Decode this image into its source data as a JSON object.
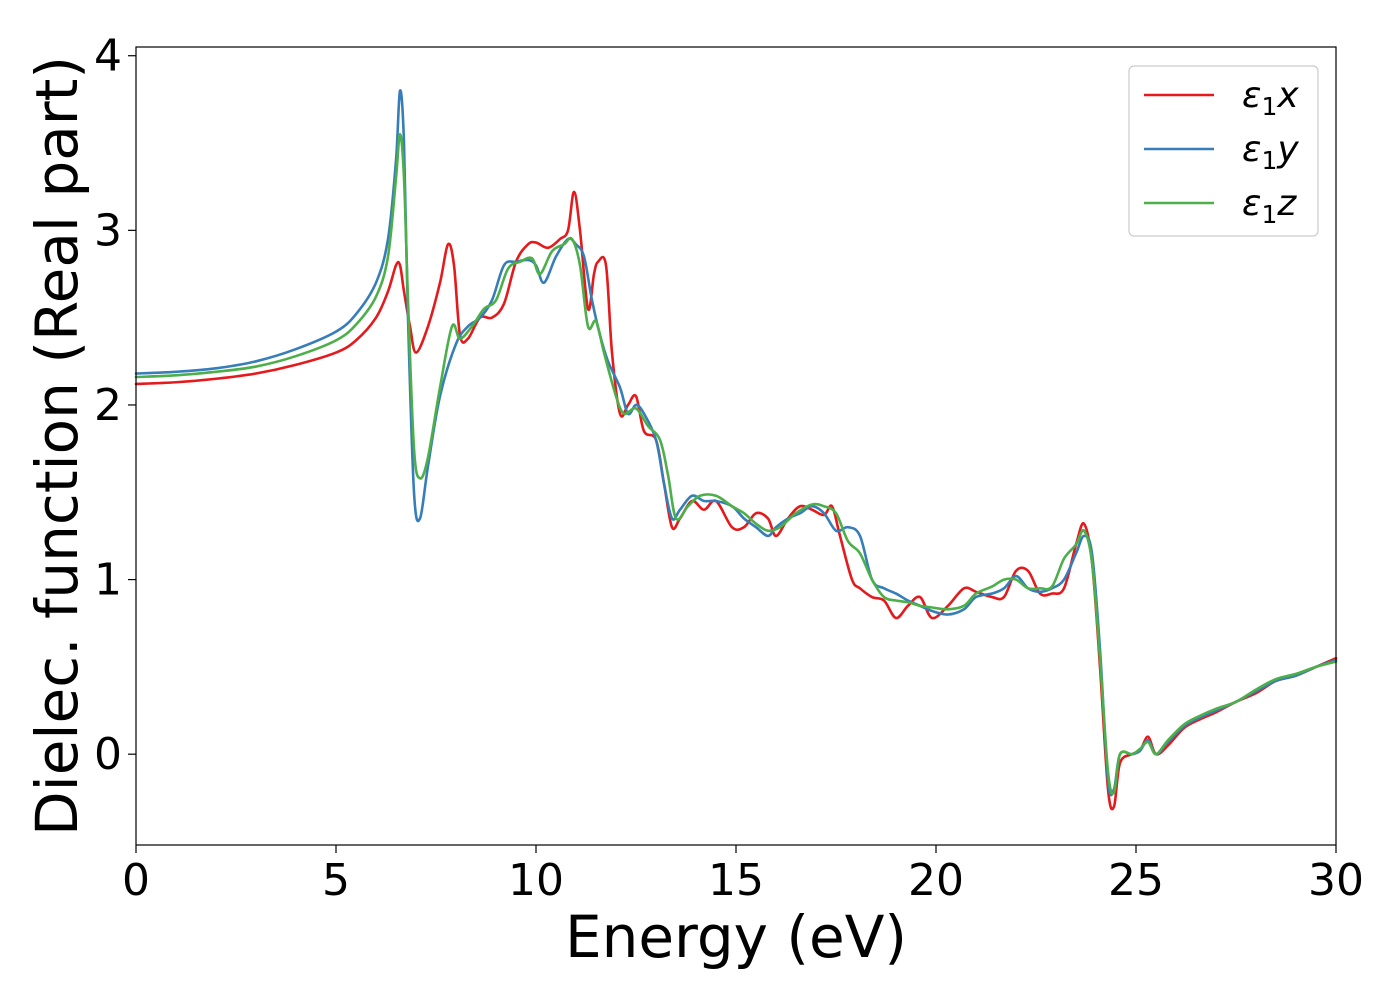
{
  "chart_data": {
    "type": "line",
    "xlabel": "Energy (eV)",
    "ylabel": "Dielec. function (Real part)",
    "xlim": [
      0,
      30
    ],
    "ylim": [
      -0.52,
      4.05
    ],
    "xticks": [
      0,
      5,
      10,
      15,
      20,
      25,
      30
    ],
    "xtick_labels": [
      "0",
      "5",
      "10",
      "15",
      "20",
      "25",
      "30"
    ],
    "yticks": [
      0,
      1,
      2,
      3,
      4
    ],
    "ytick_labels": [
      "0",
      "1",
      "2",
      "3",
      "4"
    ],
    "grid": false,
    "legend_position": "top-right",
    "series": [
      {
        "name": "ε1x",
        "legend": {
          "symbol": "ε",
          "sub": "1",
          "var": "x"
        },
        "color": "#e41a1c",
        "x": [
          0,
          1,
          2,
          3,
          4,
          5,
          5.5,
          6,
          6.3,
          6.5,
          6.6,
          6.7,
          6.85,
          7.0,
          7.3,
          7.6,
          7.8,
          7.95,
          8.1,
          8.3,
          8.6,
          8.9,
          9.2,
          9.5,
          9.8,
          10.0,
          10.3,
          10.6,
          10.8,
          10.95,
          11.1,
          11.3,
          11.45,
          11.55,
          11.75,
          11.9,
          12.1,
          12.3,
          12.5,
          12.7,
          13.0,
          13.2,
          13.4,
          13.6,
          13.9,
          14.2,
          14.5,
          14.9,
          15.2,
          15.5,
          15.8,
          16.0,
          16.3,
          16.6,
          16.9,
          17.2,
          17.4,
          17.6,
          17.9,
          18.1,
          18.4,
          18.7,
          19.0,
          19.3,
          19.6,
          19.9,
          20.3,
          20.7,
          21.0,
          21.4,
          21.7,
          22.0,
          22.3,
          22.6,
          22.9,
          23.2,
          23.5,
          23.7,
          23.9,
          24.1,
          24.3,
          24.45,
          24.6,
          24.9,
          25.1,
          25.3,
          25.5,
          25.8,
          26.2,
          26.6,
          27.0,
          27.5,
          28.0,
          28.5,
          29.0,
          29.5,
          30.0
        ],
        "y": [
          2.12,
          2.13,
          2.15,
          2.18,
          2.23,
          2.3,
          2.37,
          2.5,
          2.65,
          2.8,
          2.8,
          2.65,
          2.45,
          2.3,
          2.45,
          2.7,
          2.92,
          2.8,
          2.4,
          2.38,
          2.5,
          2.5,
          2.58,
          2.82,
          2.92,
          2.93,
          2.9,
          2.95,
          3.0,
          3.22,
          3.0,
          2.55,
          2.75,
          2.82,
          2.8,
          2.3,
          1.95,
          2.0,
          2.05,
          1.85,
          1.8,
          1.55,
          1.3,
          1.35,
          1.45,
          1.4,
          1.45,
          1.3,
          1.3,
          1.38,
          1.35,
          1.25,
          1.35,
          1.42,
          1.4,
          1.37,
          1.42,
          1.25,
          1.0,
          0.95,
          0.9,
          0.88,
          0.78,
          0.85,
          0.9,
          0.78,
          0.85,
          0.95,
          0.93,
          0.9,
          0.9,
          1.05,
          1.05,
          0.92,
          0.92,
          0.95,
          1.2,
          1.32,
          1.1,
          0.5,
          -0.2,
          -0.3,
          -0.05,
          0.0,
          0.02,
          0.1,
          0.0,
          0.05,
          0.15,
          0.2,
          0.24,
          0.3,
          0.35,
          0.42,
          0.45,
          0.5,
          0.55
        ]
      },
      {
        "name": "ε1y",
        "legend": {
          "symbol": "ε",
          "sub": "1",
          "var": "y"
        },
        "color": "#377eb8",
        "x": [
          0,
          1,
          2,
          3,
          4,
          5,
          5.5,
          6,
          6.3,
          6.5,
          6.6,
          6.7,
          6.8,
          6.95,
          7.1,
          7.3,
          7.6,
          8.0,
          8.3,
          8.6,
          8.9,
          9.2,
          9.5,
          9.8,
          10.0,
          10.2,
          10.5,
          10.8,
          11.0,
          11.2,
          11.4,
          11.6,
          11.8,
          12.1,
          12.3,
          12.5,
          12.7,
          13.0,
          13.2,
          13.4,
          13.6,
          13.9,
          14.2,
          14.5,
          14.9,
          15.2,
          15.5,
          15.8,
          16.0,
          16.3,
          16.6,
          16.9,
          17.2,
          17.5,
          17.8,
          18.1,
          18.4,
          18.7,
          19.0,
          19.3,
          19.6,
          19.9,
          20.3,
          20.7,
          21.0,
          21.4,
          21.7,
          22.0,
          22.3,
          22.6,
          22.9,
          23.2,
          23.5,
          23.7,
          23.9,
          24.1,
          24.3,
          24.45,
          24.6,
          24.9,
          25.1,
          25.3,
          25.5,
          25.8,
          26.2,
          26.6,
          27.0,
          27.5,
          28.0,
          28.5,
          29.0,
          29.5,
          30.0
        ],
        "y": [
          2.18,
          2.19,
          2.21,
          2.25,
          2.32,
          2.42,
          2.52,
          2.7,
          2.95,
          3.4,
          3.8,
          3.5,
          2.5,
          1.5,
          1.35,
          1.65,
          2.05,
          2.35,
          2.45,
          2.5,
          2.6,
          2.8,
          2.82,
          2.83,
          2.8,
          2.7,
          2.85,
          2.95,
          2.92,
          2.85,
          2.6,
          2.4,
          2.25,
          2.1,
          1.95,
          2.0,
          1.95,
          1.8,
          1.55,
          1.35,
          1.4,
          1.48,
          1.45,
          1.45,
          1.42,
          1.35,
          1.3,
          1.25,
          1.3,
          1.35,
          1.38,
          1.42,
          1.38,
          1.28,
          1.3,
          1.25,
          1.0,
          0.95,
          0.92,
          0.88,
          0.85,
          0.82,
          0.8,
          0.83,
          0.9,
          0.92,
          0.95,
          1.02,
          0.95,
          0.93,
          0.95,
          1.0,
          1.15,
          1.25,
          1.15,
          0.6,
          -0.15,
          -0.2,
          0.0,
          0.0,
          0.02,
          0.08,
          0.0,
          0.07,
          0.16,
          0.21,
          0.25,
          0.3,
          0.36,
          0.42,
          0.45,
          0.5,
          0.54
        ]
      },
      {
        "name": "ε1z",
        "legend": {
          "symbol": "ε",
          "sub": "1",
          "var": "z"
        },
        "color": "#4daf4a",
        "x": [
          0,
          1,
          2,
          3,
          4,
          5,
          5.5,
          6,
          6.3,
          6.5,
          6.6,
          6.7,
          6.8,
          6.95,
          7.1,
          7.3,
          7.6,
          7.9,
          8.1,
          8.4,
          8.7,
          9.0,
          9.3,
          9.6,
          9.9,
          10.1,
          10.4,
          10.7,
          10.9,
          11.1,
          11.3,
          11.5,
          11.7,
          12.0,
          12.2,
          12.5,
          12.8,
          13.1,
          13.3,
          13.5,
          13.8,
          14.1,
          14.5,
          14.9,
          15.2,
          15.5,
          15.8,
          16.1,
          16.5,
          16.9,
          17.2,
          17.5,
          17.8,
          18.1,
          18.4,
          18.7,
          19.0,
          19.3,
          19.6,
          19.9,
          20.3,
          20.7,
          21.0,
          21.4,
          21.7,
          22.0,
          22.3,
          22.6,
          22.9,
          23.2,
          23.5,
          23.7,
          23.9,
          24.1,
          24.3,
          24.45,
          24.6,
          24.9,
          25.1,
          25.3,
          25.5,
          25.8,
          26.2,
          26.6,
          27.0,
          27.5,
          28.0,
          28.5,
          29.0,
          29.5,
          30.0
        ],
        "y": [
          2.16,
          2.17,
          2.19,
          2.22,
          2.28,
          2.37,
          2.46,
          2.62,
          2.85,
          3.3,
          3.55,
          3.3,
          2.6,
          1.75,
          1.58,
          1.7,
          2.1,
          2.45,
          2.38,
          2.45,
          2.55,
          2.6,
          2.78,
          2.82,
          2.84,
          2.75,
          2.88,
          2.92,
          2.95,
          2.8,
          2.45,
          2.48,
          2.3,
          2.05,
          1.95,
          1.98,
          1.88,
          1.8,
          1.6,
          1.35,
          1.42,
          1.48,
          1.48,
          1.42,
          1.38,
          1.32,
          1.28,
          1.3,
          1.38,
          1.43,
          1.42,
          1.38,
          1.22,
          1.15,
          1.0,
          0.9,
          0.88,
          0.87,
          0.85,
          0.84,
          0.83,
          0.85,
          0.92,
          0.96,
          1.0,
          1.0,
          0.95,
          0.95,
          0.96,
          1.12,
          1.2,
          1.28,
          1.1,
          0.55,
          -0.1,
          -0.22,
          0.0,
          0.0,
          0.03,
          0.07,
          0.0,
          0.08,
          0.17,
          0.22,
          0.26,
          0.3,
          0.37,
          0.43,
          0.46,
          0.5,
          0.53
        ]
      }
    ]
  }
}
